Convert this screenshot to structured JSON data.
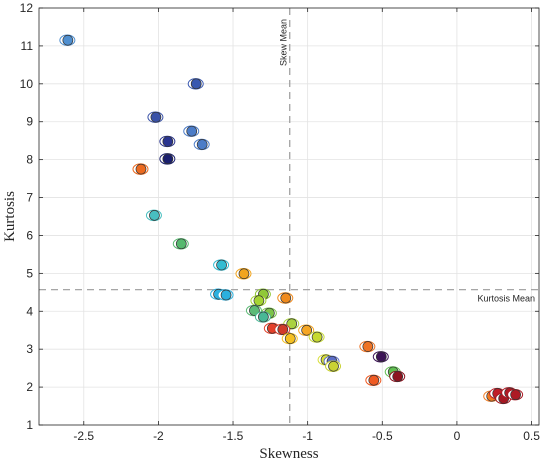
{
  "chart_data": {
    "type": "scatter",
    "xlabel": "Skewness",
    "ylabel": "Kurtosis",
    "xlim": [
      -2.8,
      0.55
    ],
    "ylim": [
      1,
      12
    ],
    "xticks": [
      -2.5,
      -2,
      -1.5,
      -1,
      -0.5,
      0,
      0.5
    ],
    "xtick_labels": [
      "-2.5",
      "-2",
      "-1.5",
      "-1",
      "-0.5",
      "0",
      "0.5"
    ],
    "yticks": [
      1,
      2,
      3,
      4,
      5,
      6,
      7,
      8,
      9,
      10,
      11,
      12
    ],
    "ytick_labels": [
      "1",
      "2",
      "3",
      "4",
      "5",
      "6",
      "7",
      "8",
      "9",
      "10",
      "11",
      "12"
    ],
    "grid": true,
    "reference_lines": [
      {
        "orientation": "vertical",
        "value": -1.12,
        "label": "Skew Mean",
        "style": "dashed"
      },
      {
        "orientation": "horizontal",
        "value": 4.57,
        "label": "Kurtosis Mean",
        "style": "dashed"
      }
    ],
    "points": [
      {
        "x": -2.61,
        "y": 11.15,
        "color": "#4f8fd0"
      },
      {
        "x": -1.75,
        "y": 10.0,
        "color": "#3858b0"
      },
      {
        "x": -2.02,
        "y": 9.12,
        "color": "#3a52a8"
      },
      {
        "x": -1.78,
        "y": 8.75,
        "color": "#4b7cc8"
      },
      {
        "x": -1.94,
        "y": 8.48,
        "color": "#2a3590"
      },
      {
        "x": -1.71,
        "y": 8.4,
        "color": "#4b7cc8"
      },
      {
        "x": -1.94,
        "y": 8.02,
        "color": "#1a1f6e"
      },
      {
        "x": -2.12,
        "y": 7.75,
        "color": "#ec6a1f"
      },
      {
        "x": -2.03,
        "y": 6.53,
        "color": "#48bfc0"
      },
      {
        "x": -1.85,
        "y": 5.78,
        "color": "#55b96e"
      },
      {
        "x": -1.58,
        "y": 5.22,
        "color": "#33bcd2"
      },
      {
        "x": -1.43,
        "y": 4.99,
        "color": "#f2a51e"
      },
      {
        "x": -1.6,
        "y": 4.45,
        "color": "#2bb1e0"
      },
      {
        "x": -1.55,
        "y": 4.43,
        "color": "#2ab0df"
      },
      {
        "x": -1.3,
        "y": 4.45,
        "color": "#90c838"
      },
      {
        "x": -1.33,
        "y": 4.28,
        "color": "#a6d433"
      },
      {
        "x": -1.15,
        "y": 4.35,
        "color": "#f08a1c"
      },
      {
        "x": -1.36,
        "y": 4.02,
        "color": "#5dba76"
      },
      {
        "x": -1.26,
        "y": 3.95,
        "color": "#7cc34a"
      },
      {
        "x": -1.3,
        "y": 3.85,
        "color": "#48b896"
      },
      {
        "x": -1.11,
        "y": 3.67,
        "color": "#aad23f"
      },
      {
        "x": -1.24,
        "y": 3.55,
        "color": "#e4402a"
      },
      {
        "x": -1.17,
        "y": 3.52,
        "color": "#d13a2a"
      },
      {
        "x": -1.01,
        "y": 3.5,
        "color": "#f5a623"
      },
      {
        "x": -1.12,
        "y": 3.28,
        "color": "#f5c022"
      },
      {
        "x": -0.94,
        "y": 3.32,
        "color": "#c6d931"
      },
      {
        "x": -0.6,
        "y": 3.07,
        "color": "#ee7426"
      },
      {
        "x": -0.88,
        "y": 2.72,
        "color": "#d7de3a"
      },
      {
        "x": -0.84,
        "y": 2.68,
        "color": "#5b6dc7"
      },
      {
        "x": -0.83,
        "y": 2.55,
        "color": "#c9d234"
      },
      {
        "x": -0.51,
        "y": 2.8,
        "color": "#3d1457"
      },
      {
        "x": -0.43,
        "y": 2.4,
        "color": "#5fbf4f"
      },
      {
        "x": -0.4,
        "y": 2.28,
        "color": "#8e1420"
      },
      {
        "x": -0.56,
        "y": 2.18,
        "color": "#ef5a22"
      },
      {
        "x": 0.23,
        "y": 1.76,
        "color": "#f07b22"
      },
      {
        "x": 0.27,
        "y": 1.83,
        "color": "#c01e28"
      },
      {
        "x": 0.31,
        "y": 1.7,
        "color": "#a51822"
      },
      {
        "x": 0.35,
        "y": 1.85,
        "color": "#b01a24"
      },
      {
        "x": 0.39,
        "y": 1.8,
        "color": "#ad1a24"
      }
    ]
  }
}
